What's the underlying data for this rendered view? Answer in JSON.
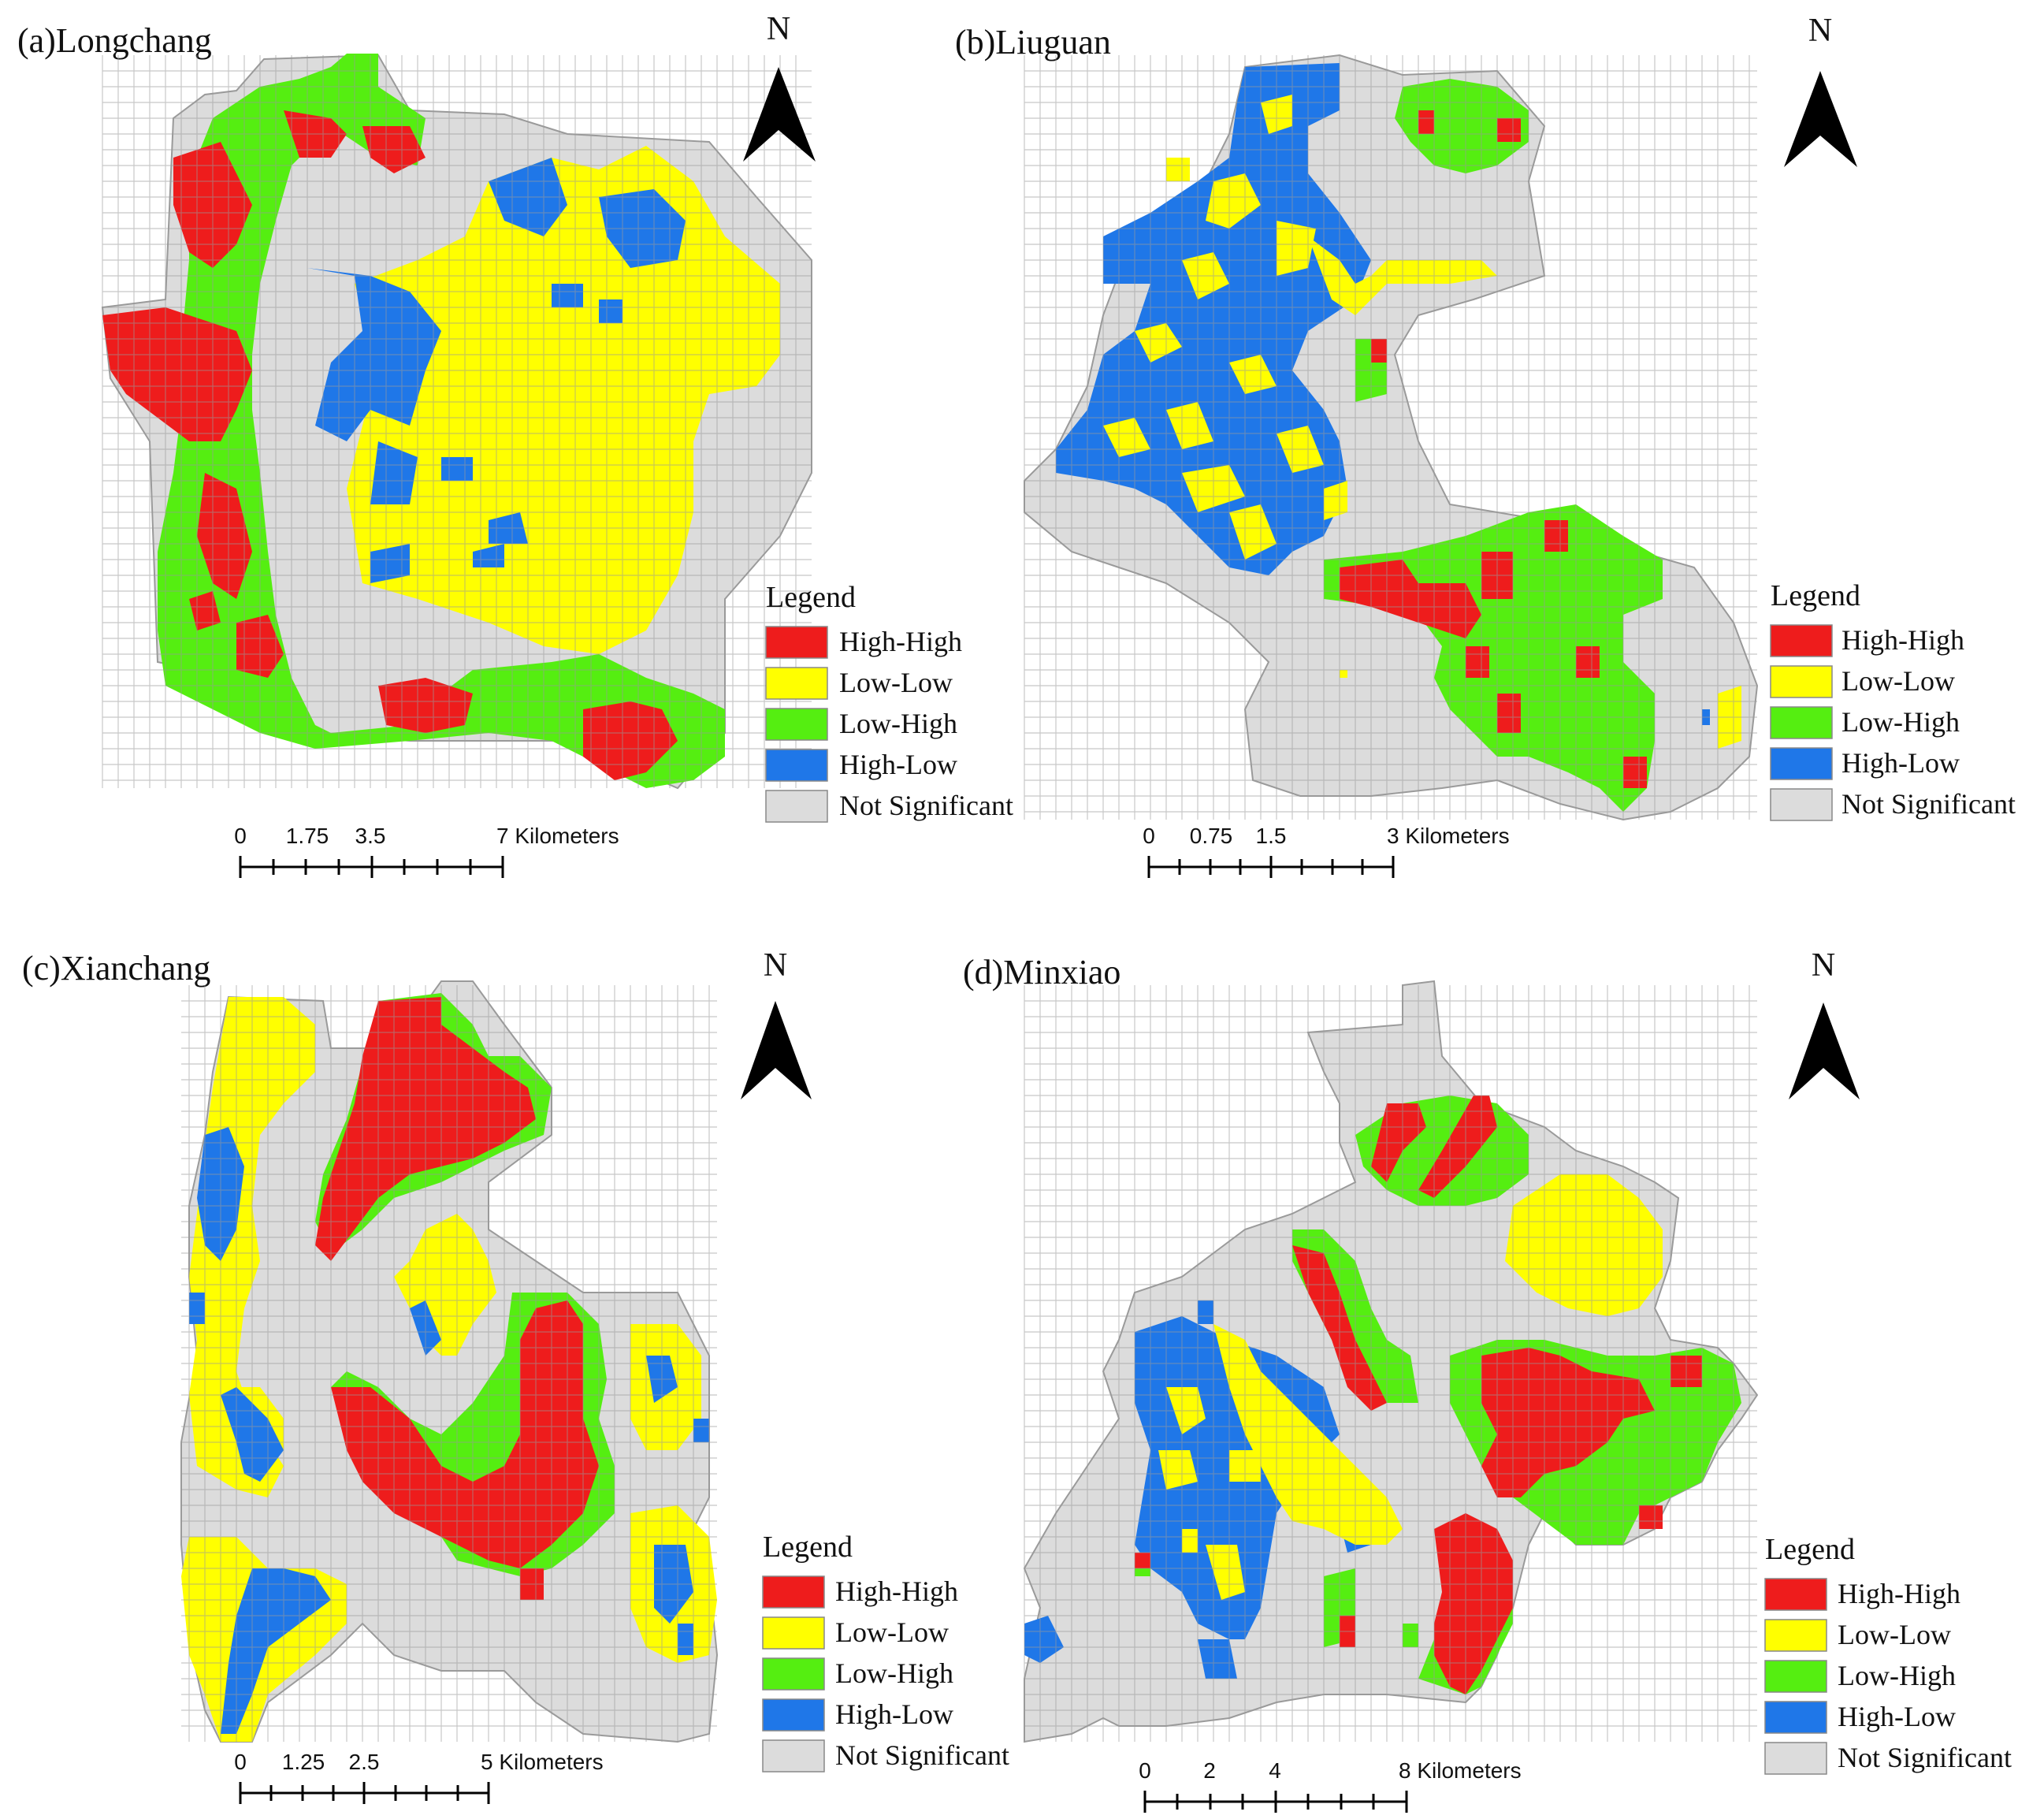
{
  "legend": {
    "title": "Legend",
    "items": [
      {
        "label": "High-High",
        "color": "#ee1c1c"
      },
      {
        "label": "Low-Low",
        "color": "#ffff00"
      },
      {
        "label": "Low-High",
        "color": "#55ee11"
      },
      {
        "label": "High-Low",
        "color": "#1f77e8"
      },
      {
        "label": "Not Significant",
        "color": "#dcdcdc"
      }
    ]
  },
  "north_label": "N",
  "panels": [
    {
      "id": "a",
      "title": "(a)Longchang",
      "scale": {
        "ticks": [
          "0",
          "1.75",
          "3.5",
          "7 Kilometers"
        ]
      }
    },
    {
      "id": "b",
      "title": "(b)Liuguan",
      "scale": {
        "ticks": [
          "0",
          "0.75",
          "1.5",
          "3 Kilometers"
        ]
      }
    },
    {
      "id": "c",
      "title": "(c)Xianchang",
      "scale": {
        "ticks": [
          "0",
          "1.25",
          "2.5",
          "5 Kilometers"
        ]
      }
    },
    {
      "id": "d",
      "title": "(d)Minxiao",
      "scale": {
        "ticks": [
          "0",
          "2",
          "4",
          "8 Kilometers"
        ]
      }
    }
  ]
}
